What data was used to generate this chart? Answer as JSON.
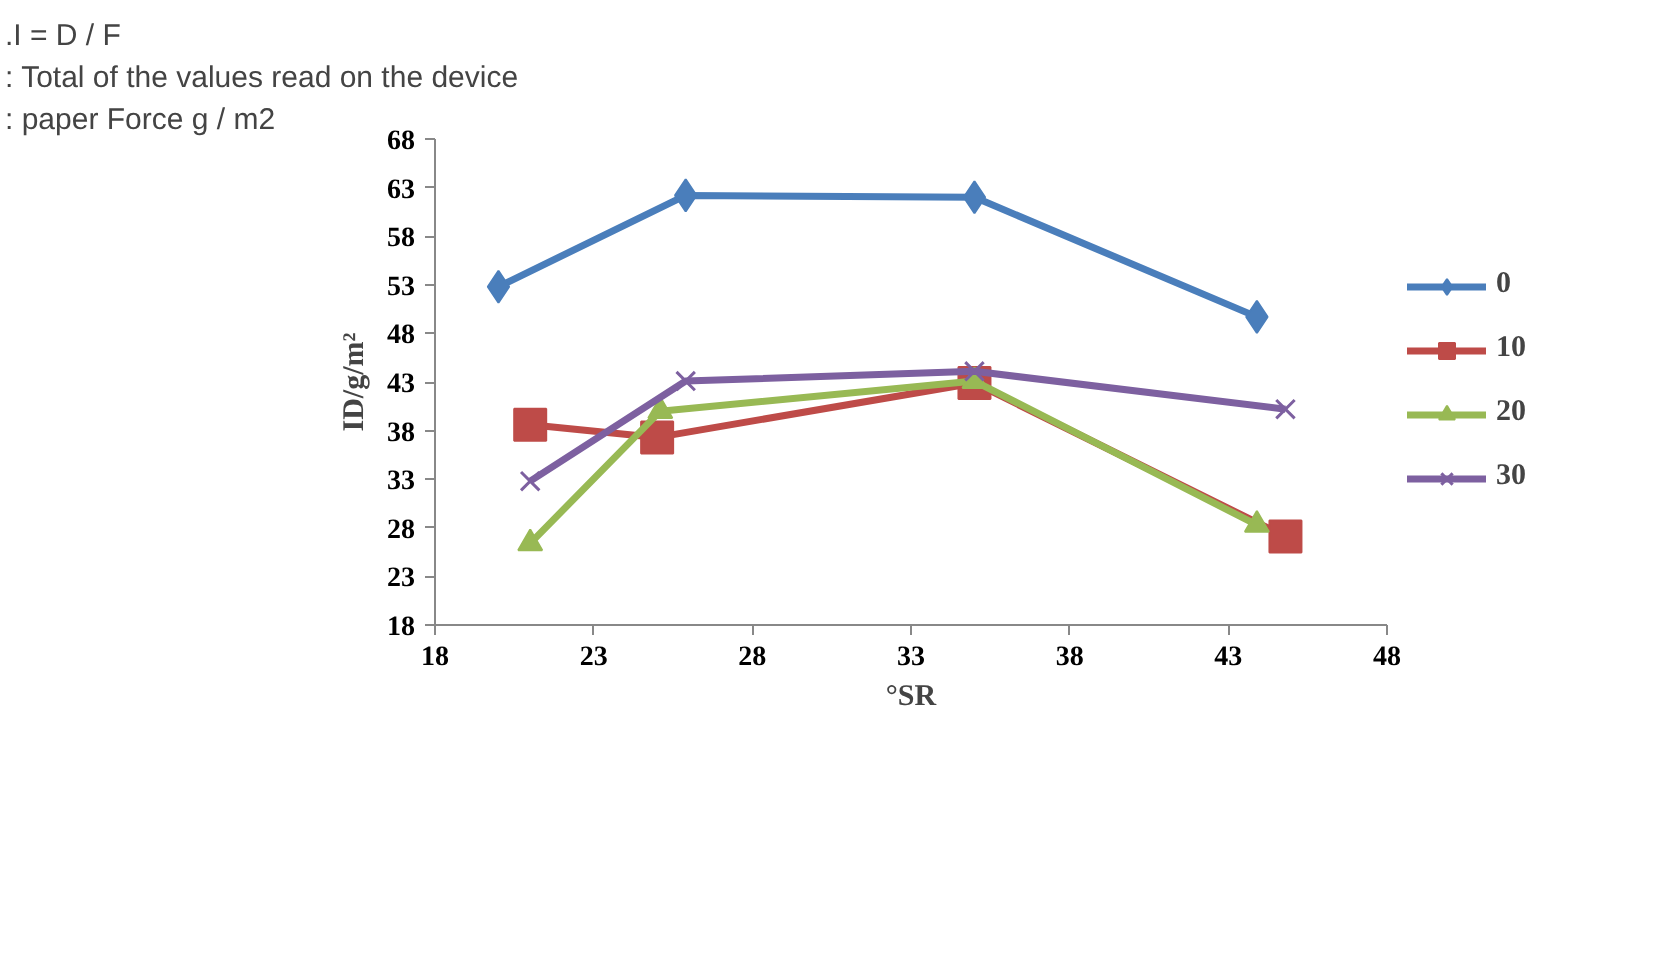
{
  "chart_data": {
    "type": "line",
    "xlabel": "°SR",
    "ylabel": "ID/g/m²",
    "annotations": [
      ".I = D / F",
      ": Total of the values read on the device",
      ": paper Force g / m2"
    ],
    "xlim": [
      18,
      48
    ],
    "xticks": [
      18,
      23,
      28,
      33,
      38,
      43,
      48
    ],
    "ylim": [
      18,
      68
    ],
    "yticks": [
      18,
      23,
      28,
      33,
      38,
      43,
      48,
      53,
      58,
      63,
      68
    ],
    "grid": false,
    "legend": "right",
    "series": [
      {
        "name": "0",
        "color": "#4a7ebb",
        "marker": "diamond",
        "x": [
          20,
          25.9,
          35,
          43.9
        ],
        "values": [
          52.8,
          62.2,
          62.0,
          49.7
        ]
      },
      {
        "name": "10",
        "color": "#be4b48",
        "marker": "square",
        "x": [
          21,
          25,
          35,
          44.8
        ],
        "values": [
          38.6,
          37.3,
          42.9,
          27.1
        ]
      },
      {
        "name": "20",
        "color": "#98b954",
        "marker": "triangle",
        "x": [
          21,
          25.1,
          35,
          43.9
        ],
        "values": [
          26.4,
          40.0,
          43.1,
          28.3
        ]
      },
      {
        "name": "30",
        "color": "#7d60a0",
        "marker": "x",
        "x": [
          21,
          25.9,
          35,
          44.8
        ],
        "values": [
          32.8,
          43.1,
          44.1,
          40.2
        ]
      }
    ]
  }
}
